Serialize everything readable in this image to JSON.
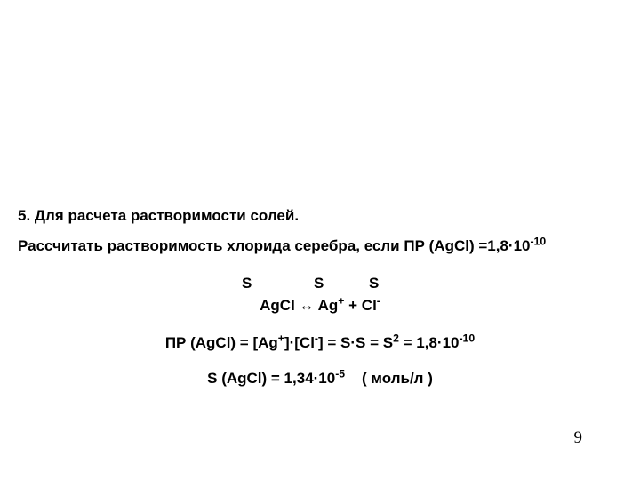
{
  "colors": {
    "bg": "#ffffff",
    "text": "#000000"
  },
  "heading": "5. Для расчета растворимости солей.",
  "task_prefix": "Рассчитать растворимость хлорида серебра, если ПР (AgCl) =1,8·10",
  "task_exp": "-10",
  "s_row": {
    "s1": "S",
    "s2": "S",
    "s3": "S"
  },
  "reaction": {
    "lhs": "AgCl ↔ Ag",
    "ag_charge": "+",
    "plus": " + Cl",
    "cl_charge": "-"
  },
  "formula": {
    "p1": "ПР (AgCl) = [Ag",
    "ag_sup": "+",
    "p2": "]·[Cl",
    "cl_sup": "-",
    "p3": "] = S·S = S",
    "sq_sup": "2",
    "p4_prefix": " = 1,8·10",
    "p4_exp": "-10"
  },
  "result": {
    "prefix": "S (AgCl) = 1,34·10",
    "exp": "-5",
    "units": "    ( моль/л )"
  },
  "page_number": "9"
}
